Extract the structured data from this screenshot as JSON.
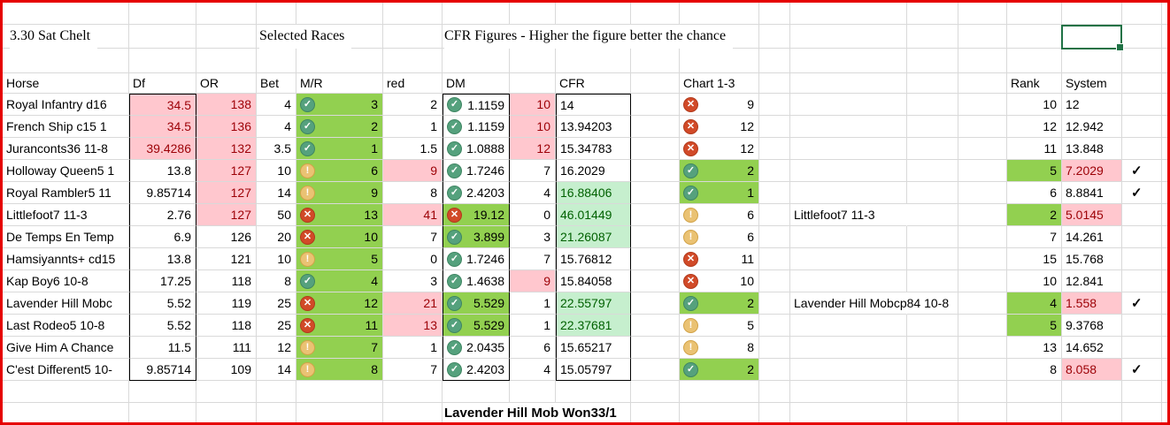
{
  "titles": {
    "left": "3.30 Sat Chelt",
    "middle": "Selected Races",
    "right": "CFR Figures - Higher the figure better the chance"
  },
  "headers": {
    "horse": "Horse",
    "df": "Df",
    "or": "OR",
    "bet": "Bet",
    "mr": "M/R",
    "red": "red",
    "dm": "DM",
    "cfr": "CFR",
    "chart": "Chart 1-3",
    "rank": "Rank",
    "system": "System"
  },
  "footer": {
    "note": "Lavender Hill Mob Won33/1"
  },
  "selected_cell": {
    "value": ""
  },
  "colors": {
    "bad_bg": "#FFC7CE",
    "bad_text": "#9C0006",
    "good_bg": "#92D050",
    "good_light_bg": "#C6EFCE",
    "good_light_text": "#006100",
    "frame_red": "#E60000",
    "selection_green": "#1F7245",
    "icon_check": "#55A17D",
    "icon_warn": "#EAC273",
    "icon_x": "#D14A28",
    "gridline": "#D9D9D9"
  },
  "rows": [
    {
      "name": "Royal Infantry d16",
      "df": "34.5",
      "or": "138",
      "bet": "4",
      "mr_icon": "check",
      "mr": "3",
      "red": "2",
      "dm_icon": "check",
      "dm": "1.1159",
      "dm2": "10",
      "cfr": "14",
      "chart_icon": "x",
      "chart": "9",
      "note": "",
      "rank": "10",
      "system": "12",
      "tick": "",
      "hl": {
        "df": "bad",
        "or": "bad",
        "dm2": "bad"
      }
    },
    {
      "name": "French Ship c15 1",
      "df": "34.5",
      "or": "136",
      "bet": "4",
      "mr_icon": "check",
      "mr": "2",
      "red": "1",
      "dm_icon": "check",
      "dm": "1.1159",
      "dm2": "10",
      "cfr": "13.94203",
      "chart_icon": "x",
      "chart": "12",
      "note": "",
      "rank": "12",
      "system": "12.942",
      "tick": "",
      "hl": {
        "df": "bad",
        "or": "bad",
        "dm2": "bad"
      }
    },
    {
      "name": "Juranconts36 11-8",
      "df": "39.4286",
      "or": "132",
      "bet": "3.5",
      "mr_icon": "check",
      "mr": "1",
      "red": "1.5",
      "dm_icon": "check",
      "dm": "1.0888",
      "dm2": "12",
      "cfr": "15.34783",
      "chart_icon": "x",
      "chart": "12",
      "note": "",
      "rank": "11",
      "system": "13.848",
      "tick": "",
      "hl": {
        "df": "bad",
        "or": "bad",
        "dm2": "bad"
      }
    },
    {
      "name": "Holloway Queen5 1",
      "df": "13.8",
      "or": "127",
      "bet": "10",
      "mr_icon": "warn",
      "mr": "6",
      "red": "9",
      "dm_icon": "check",
      "dm": "1.7246",
      "dm2": "7",
      "cfr": "16.2029",
      "chart_icon": "check",
      "chart": "2",
      "note": "",
      "rank": "5",
      "system": "7.2029",
      "tick": "✓",
      "hl": {
        "or": "bad",
        "red": "bad",
        "chart": "good",
        "rank": "good",
        "system": "bad"
      }
    },
    {
      "name": "Royal Rambler5 11",
      "df": "9.85714",
      "or": "127",
      "bet": "14",
      "mr_icon": "warn",
      "mr": "9",
      "red": "8",
      "dm_icon": "check",
      "dm": "2.4203",
      "dm2": "4",
      "cfr": "16.88406",
      "chart_icon": "check",
      "chart": "1",
      "note": "",
      "rank": "6",
      "system": "8.8841",
      "tick": "✓",
      "hl": {
        "or": "bad",
        "cfr": "lgood",
        "chart": "good"
      }
    },
    {
      "name": "Littlefoot7 11-3",
      "df": "2.76",
      "or": "127",
      "bet": "50",
      "mr_icon": "x",
      "mr": "13",
      "red": "41",
      "dm_icon": "x",
      "dm": "19.12",
      "dm2": "0",
      "cfr": "46.01449",
      "chart_icon": "warn",
      "chart": "6",
      "note": "Littlefoot7 11-3",
      "rank": "2",
      "system": "5.0145",
      "tick": "",
      "hl": {
        "or": "bad",
        "red": "bad",
        "dm": "good",
        "cfr": "lgood",
        "rank": "good",
        "system": "bad"
      }
    },
    {
      "name": "De Temps En Temp",
      "df": "6.9",
      "or": "126",
      "bet": "20",
      "mr_icon": "x",
      "mr": "10",
      "red": "7",
      "dm_icon": "check",
      "dm": "3.899",
      "dm2": "3",
      "cfr": "21.26087",
      "chart_icon": "warn",
      "chart": "6",
      "note": "",
      "rank": "7",
      "system": "14.261",
      "tick": "",
      "hl": {
        "dm": "good",
        "cfr": "lgood"
      }
    },
    {
      "name": "Hamsiyannts+ cd15",
      "df": "13.8",
      "or": "121",
      "bet": "10",
      "mr_icon": "warn",
      "mr": "5",
      "red": "0",
      "dm_icon": "check",
      "dm": "1.7246",
      "dm2": "7",
      "cfr": "15.76812",
      "chart_icon": "x",
      "chart": "11",
      "note": "",
      "rank": "15",
      "system": "15.768",
      "tick": "",
      "hl": {}
    },
    {
      "name": "Kap Boy6 10-8",
      "df": "17.25",
      "or": "118",
      "bet": "8",
      "mr_icon": "check",
      "mr": "4",
      "red": "3",
      "dm_icon": "check",
      "dm": "1.4638",
      "dm2": "9",
      "cfr": "15.84058",
      "chart_icon": "x",
      "chart": "10",
      "note": "",
      "rank": "10",
      "system": "12.841",
      "tick": "",
      "hl": {
        "dm2": "bad"
      }
    },
    {
      "name": "Lavender Hill Mobc",
      "df": "5.52",
      "or": "119",
      "bet": "25",
      "mr_icon": "x",
      "mr": "12",
      "red": "21",
      "dm_icon": "check",
      "dm": "5.529",
      "dm2": "1",
      "cfr": "22.55797",
      "chart_icon": "check",
      "chart": "2",
      "note": "Lavender Hill Mobcp84 10-8",
      "rank": "4",
      "system": "1.558",
      "tick": "✓",
      "hl": {
        "red": "bad",
        "dm": "good",
        "cfr": "lgood",
        "chart": "good",
        "rank": "good",
        "system": "bad"
      }
    },
    {
      "name": "Last Rodeo5 10-8",
      "df": "5.52",
      "or": "118",
      "bet": "25",
      "mr_icon": "x",
      "mr": "11",
      "red": "13",
      "dm_icon": "check",
      "dm": "5.529",
      "dm2": "1",
      "cfr": "22.37681",
      "chart_icon": "warn",
      "chart": "5",
      "note": "",
      "rank": "5",
      "system": "9.3768",
      "tick": "",
      "hl": {
        "red": "bad",
        "dm": "good",
        "cfr": "lgood",
        "rank": "good"
      }
    },
    {
      "name": "Give Him A Chance",
      "df": "11.5",
      "or": "111",
      "bet": "12",
      "mr_icon": "warn",
      "mr": "7",
      "red": "1",
      "dm_icon": "check",
      "dm": "2.0435",
      "dm2": "6",
      "cfr": "15.65217",
      "chart_icon": "warn",
      "chart": "8",
      "note": "",
      "rank": "13",
      "system": "14.652",
      "tick": "",
      "hl": {}
    },
    {
      "name": "C'est Different5 10-",
      "df": "9.85714",
      "or": "109",
      "bet": "14",
      "mr_icon": "warn",
      "mr": "8",
      "red": "7",
      "dm_icon": "check",
      "dm": "2.4203",
      "dm2": "4",
      "cfr": "15.05797",
      "chart_icon": "check",
      "chart": "2",
      "note": "",
      "rank": "8",
      "system": "8.058",
      "tick": "✓",
      "hl": {
        "chart": "good",
        "system": "bad"
      }
    }
  ]
}
